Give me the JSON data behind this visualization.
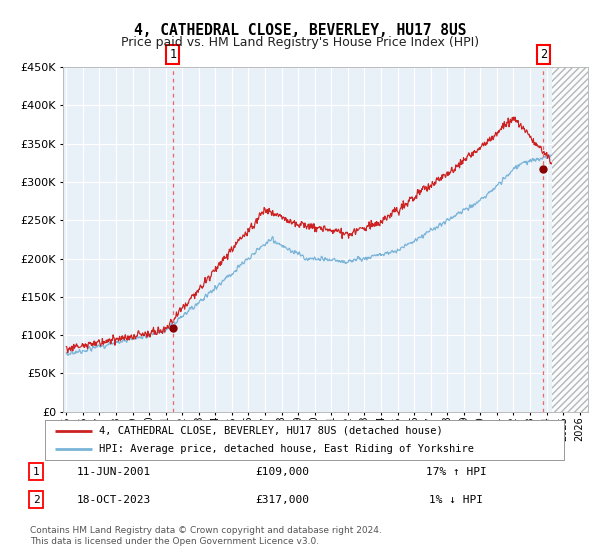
{
  "title": "4, CATHEDRAL CLOSE, BEVERLEY, HU17 8US",
  "subtitle": "Price paid vs. HM Land Registry's House Price Index (HPI)",
  "title_fontsize": 10.5,
  "subtitle_fontsize": 9,
  "background_color": "#e8f0f8",
  "hpi_color": "#7ab4d8",
  "price_color": "#cc2222",
  "marker_color": "#880000",
  "dashed_color": "#ee6666",
  "ylim": [
    0,
    450000
  ],
  "yticks": [
    0,
    50000,
    100000,
    150000,
    200000,
    250000,
    300000,
    350000,
    400000,
    450000
  ],
  "sale1_date": "11-JUN-2001",
  "sale1_price": 109000,
  "sale1_hpi_pct": "17% ↑ HPI",
  "sale1_x": 2001.44,
  "sale1_y": 109000,
  "sale2_date": "18-OCT-2023",
  "sale2_price": 317000,
  "sale2_hpi_pct": "1% ↓ HPI",
  "sale2_x": 2023.8,
  "sale2_y": 317000,
  "legend_line1": "4, CATHEDRAL CLOSE, BEVERLEY, HU17 8US (detached house)",
  "legend_line2": "HPI: Average price, detached house, East Riding of Yorkshire",
  "footer": "Contains HM Land Registry data © Crown copyright and database right 2024.\nThis data is licensed under the Open Government Licence v3.0.",
  "grid_color": "#d0dce8",
  "xmin": 1994.8,
  "xmax": 2026.5,
  "hatch_start": 2024.3
}
